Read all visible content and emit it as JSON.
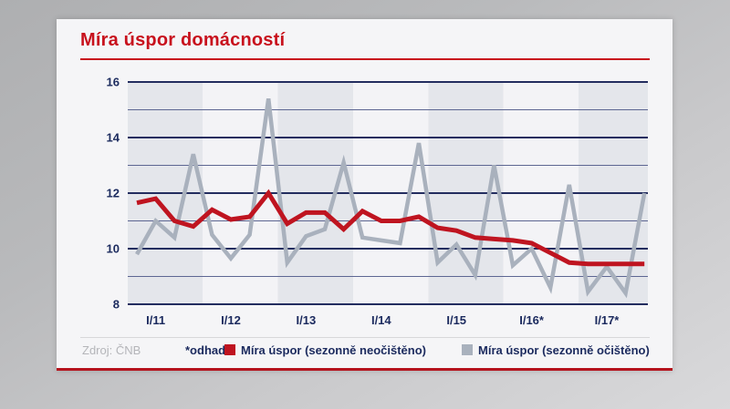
{
  "header": {
    "title": "Míra úspor domácností"
  },
  "footer": {
    "source": "Zdroj: ČNB",
    "estimate_note": "*odhad",
    "legend": [
      {
        "label": "Míra úspor (sezonně neočištěno)",
        "color": "#bf1420"
      },
      {
        "label": "Míra úspor (sezonně očištěno)",
        "color": "#a9b1bd"
      }
    ]
  },
  "colors": {
    "title_red": "#c8111d",
    "bottom_bar_red": "#b5131d",
    "series_red": "#bf1420",
    "series_gray": "#a9b1bd",
    "grid_major": "#232d5f",
    "grid_minor": "#5d6692",
    "band_dark": "#e4e6eb",
    "band_light": "#f3f3f6",
    "axis_text": "#1b2a5e",
    "card_bg": "#f5f5f7"
  },
  "chart_data": {
    "type": "line",
    "title": "Míra úspor domácností",
    "xlabel": "",
    "ylabel": "",
    "ylim": [
      8,
      16
    ],
    "y_major_ticks": [
      8,
      10,
      12,
      14,
      16
    ],
    "y_minor_gridlines": [
      9,
      11,
      13,
      15
    ],
    "grid": "horizontal",
    "legend_position": "bottom",
    "background_bands": "alternating vertical year bands, 4 quarters per band, starting dark",
    "x": [
      "IV/10",
      "I/11",
      "II/11",
      "III/11",
      "IV/11",
      "I/12",
      "II/12",
      "III/12",
      "IV/12",
      "I/13",
      "II/13",
      "III/13",
      "IV/13",
      "I/14",
      "II/14",
      "III/14",
      "IV/14",
      "I/15",
      "II/15",
      "III/15",
      "IV/15",
      "I/16",
      "II/16",
      "III/16",
      "IV/16",
      "I/17",
      "II/17",
      "III/17"
    ],
    "x_axis_labels": [
      {
        "index": 1,
        "label": "I/11"
      },
      {
        "index": 5,
        "label": "I/12"
      },
      {
        "index": 9,
        "label": "I/13"
      },
      {
        "index": 13,
        "label": "I/14"
      },
      {
        "index": 17,
        "label": "I/15"
      },
      {
        "index": 21,
        "label": "I/16*"
      },
      {
        "index": 25,
        "label": "I/17*"
      }
    ],
    "series": [
      {
        "name": "Míra úspor (sezonně neočištěno)",
        "color": "#bf1420",
        "stroke_width": 5,
        "values": [
          11.65,
          11.8,
          11.0,
          10.8,
          11.4,
          11.05,
          11.15,
          12.0,
          10.9,
          11.3,
          11.3,
          10.7,
          11.35,
          11.0,
          11.0,
          11.15,
          10.75,
          10.65,
          10.4,
          10.35,
          10.3,
          10.2,
          9.85,
          9.5,
          9.45,
          9.45,
          9.45,
          9.45
        ]
      },
      {
        "name": "Míra úspor (sezonně očištěno)",
        "color": "#a9b1bd",
        "stroke_width": 4.5,
        "values": [
          9.8,
          11.0,
          10.4,
          13.4,
          10.5,
          9.65,
          10.5,
          15.4,
          9.5,
          10.45,
          10.7,
          13.1,
          10.4,
          10.3,
          10.2,
          13.8,
          9.5,
          10.15,
          9.05,
          13.0,
          9.4,
          10.0,
          8.6,
          12.3,
          8.45,
          9.35,
          8.4,
          12.0
        ]
      }
    ]
  }
}
